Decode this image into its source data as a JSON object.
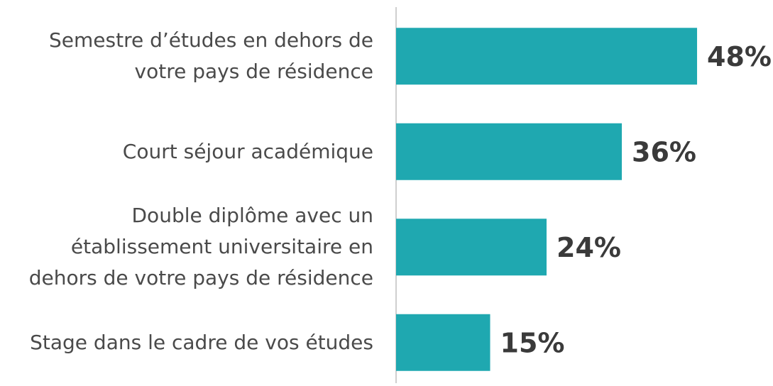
{
  "chart_data": {
    "type": "bar",
    "orientation": "horizontal",
    "categories": [
      "Semestre d’études en dehors de votre pays de résidence",
      "Court séjour académique",
      "Double diplôme avec un établissement universitaire en dehors de votre pays de résidence",
      "Stage dans le cadre de vos études"
    ],
    "values": [
      48,
      36,
      24,
      15
    ],
    "value_labels": [
      "48%",
      "36%",
      "24%",
      "15%"
    ],
    "color": "#1fa8b0",
    "xlim": [
      0,
      50
    ]
  }
}
